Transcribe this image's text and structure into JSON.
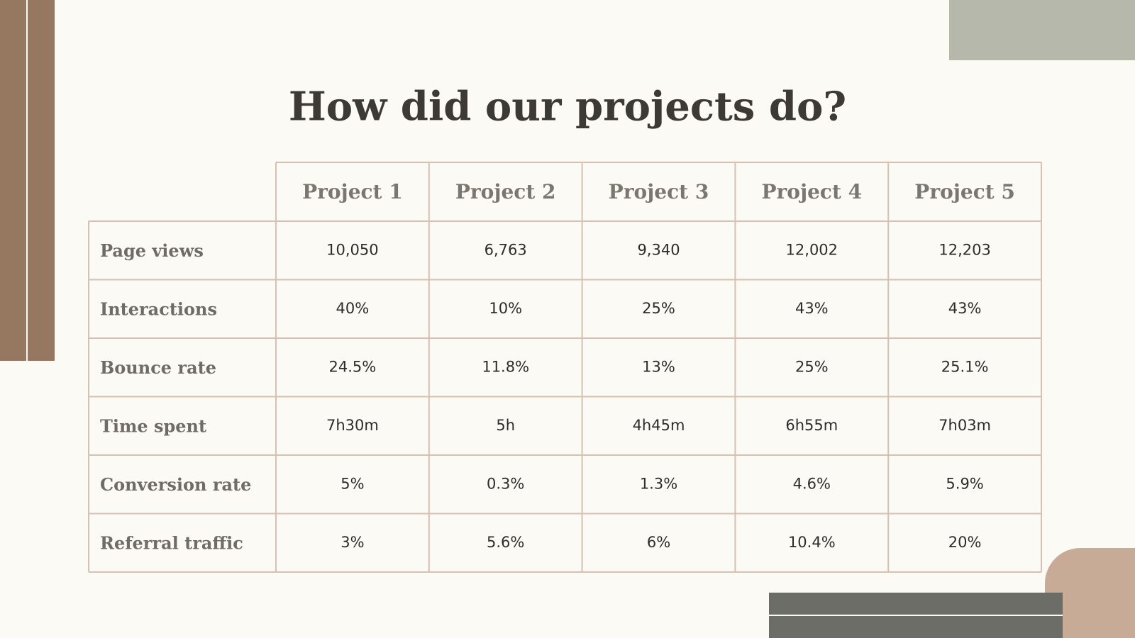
{
  "title": "How did our projects do?",
  "table": {
    "header": [
      "Project 1",
      "Project 2",
      "Project 3",
      "Project 4",
      "Project 5"
    ],
    "rows": [
      [
        "Page views",
        "10,050",
        "6,763",
        "9,340",
        "12,002",
        "12,203"
      ],
      [
        "Interactions",
        "40%",
        "10%",
        "25%",
        "43%",
        "43%"
      ],
      [
        "Bounce rate",
        "24.5%",
        "11.8%",
        "13%",
        "25%",
        "25.1%"
      ],
      [
        "Time spent",
        "7h30m",
        "5h",
        "4h45m",
        "6h55m",
        "7h03m"
      ],
      [
        "Conversion rate",
        "5%",
        "0.3%",
        "1.3%",
        "4.6%",
        "5.9%"
      ],
      [
        "Referral traffic",
        "3%",
        "5.6%",
        "6%",
        "10.4%",
        "20%"
      ]
    ]
  }
}
